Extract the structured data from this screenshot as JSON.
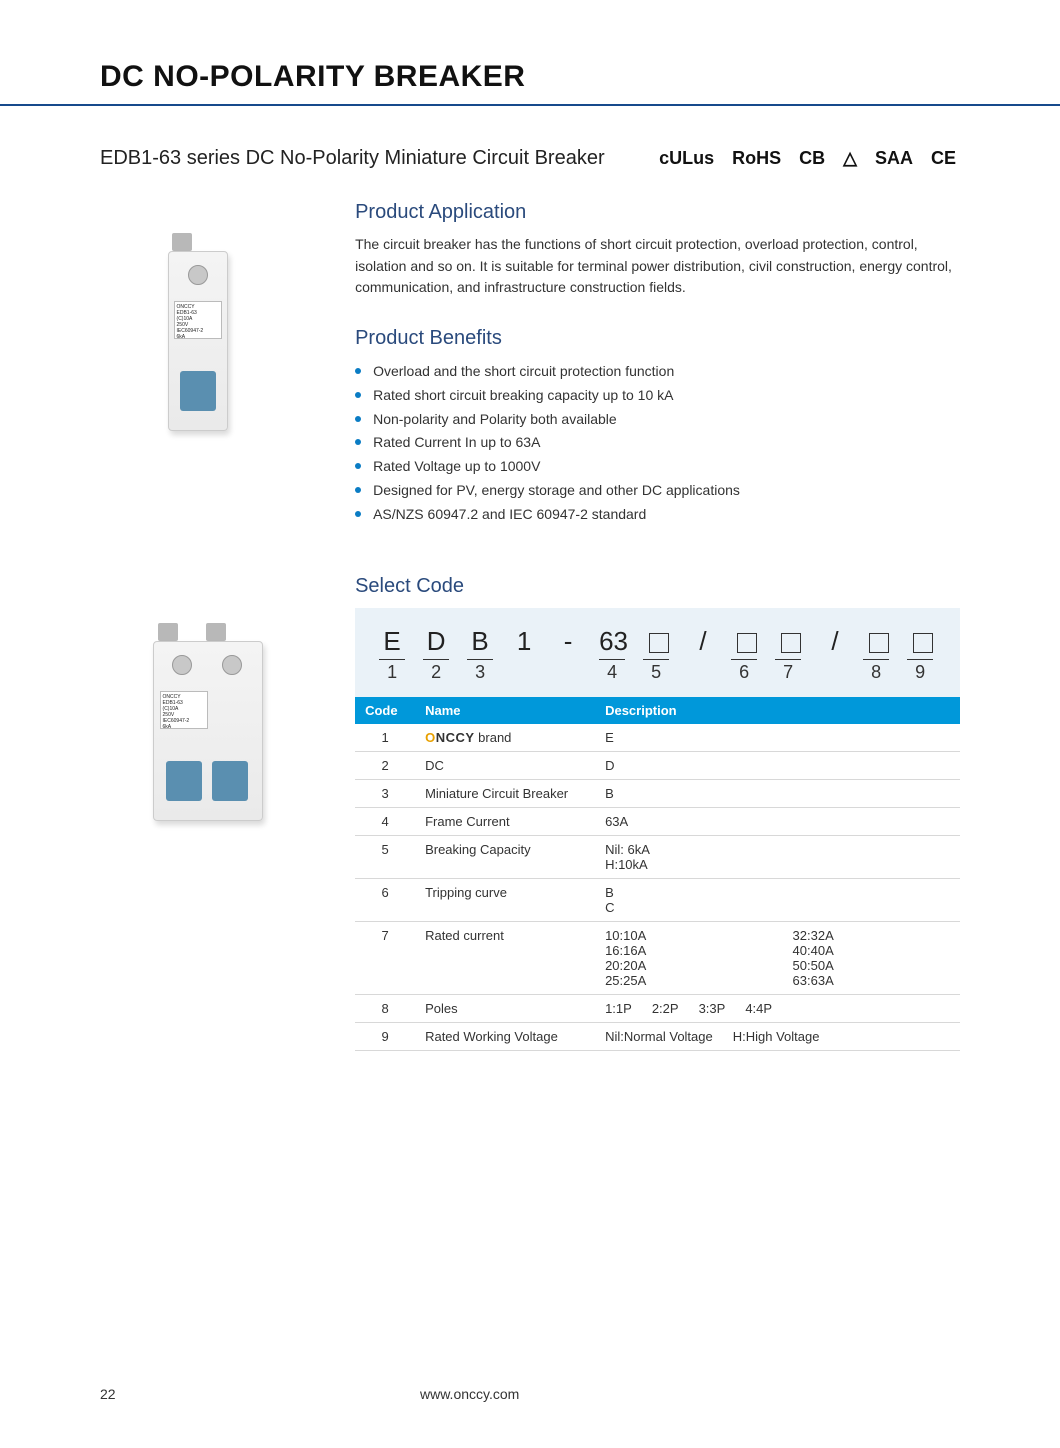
{
  "page": {
    "title": "DC NO-POLARITY BREAKER",
    "subtitle": "EDB1-63 series DC No-Polarity  Miniature Circuit Breaker",
    "pageNumber": "22",
    "url": "www.onccy.com"
  },
  "certifications": [
    "cULus",
    "RoHS",
    "CB",
    "△",
    "SAA",
    "CE"
  ],
  "sections": {
    "application": {
      "heading": "Product Application",
      "text": "The circuit breaker has the functions of short circuit protection, overload protection, control, isolation and so on. It is suitable for terminal power distribution, civil construction, energy control, communication, and infrastructure construction fields."
    },
    "benefits": {
      "heading": "Product Benefits",
      "items": [
        "Overload and the short circuit protection function",
        "Rated short circuit breaking capacity up to 10 kA",
        "Non-polarity and Polarity both available",
        "Rated Current In up to 63A",
        "Rated Voltage up to 1000V",
        "Designed for PV, energy storage and other DC applications",
        "AS/NZS 60947.2 and IEC 60947-2 standard"
      ]
    },
    "selectCode": {
      "heading": "Select Code",
      "pattern": {
        "letters": [
          "E",
          "D",
          "B",
          "1",
          "-",
          "63",
          "□",
          "/",
          "□",
          "□",
          "/",
          "□",
          "□"
        ],
        "numbers": [
          "1",
          "2",
          "3",
          "",
          "",
          "4",
          "5",
          "",
          "6",
          "7",
          "",
          "8",
          "9"
        ]
      }
    }
  },
  "codeTable": {
    "headers": [
      "Code",
      "Name",
      "Description"
    ],
    "rows": [
      {
        "code": "1",
        "name": "ONCCY brand",
        "desc": "E",
        "brand": true
      },
      {
        "code": "2",
        "name": "DC",
        "desc": "D"
      },
      {
        "code": "3",
        "name": "Miniature Circuit Breaker",
        "desc": "B"
      },
      {
        "code": "4",
        "name": "Frame Current",
        "desc": "63A"
      },
      {
        "code": "5",
        "name": "Breaking Capacity",
        "desc": "Nil: 6kA\nH:10kA"
      },
      {
        "code": "6",
        "name": "Tripping curve",
        "desc": "B\nC"
      },
      {
        "code": "7",
        "name": "Rated current",
        "descGrid": [
          "10:10A",
          "32:32A",
          "16:16A",
          "40:40A",
          "20:20A",
          "50:50A",
          "25:25A",
          "63:63A"
        ]
      },
      {
        "code": "8",
        "name": "Poles",
        "descInline": [
          "1:1P",
          "2:2P",
          "3:3P",
          "4:4P"
        ]
      },
      {
        "code": "9",
        "name": "Rated Working Voltage",
        "descInline": [
          "Nil:Normal Voltage",
          "H:High Voltage"
        ]
      }
    ]
  },
  "deviceLabel": "ONCCY\nEDB1-63\n(C)10A\n250V\nIEC60947-2\n6kA"
}
